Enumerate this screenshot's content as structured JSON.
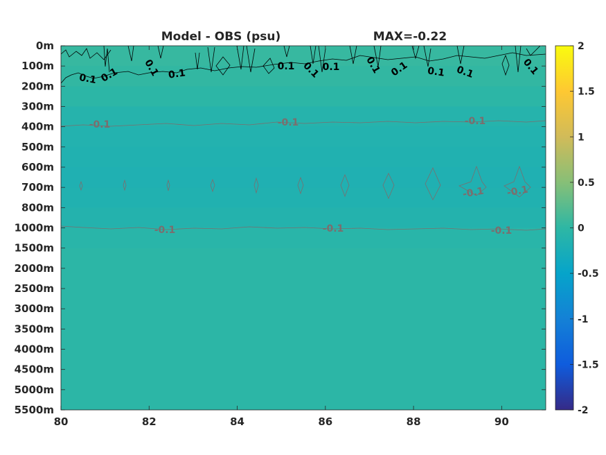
{
  "chart_data": {
    "type": "heatmap",
    "title": "Model - OBS (psu)",
    "subtitle": "MAX=-0.22",
    "x_ticks": [
      80,
      82,
      84,
      86,
      88,
      90
    ],
    "x_range": [
      80,
      91
    ],
    "y_ticks": [
      "0m",
      "100m",
      "200m",
      "300m",
      "400m",
      "500m",
      "600m",
      "700m",
      "800m",
      "1000m",
      "1500m",
      "2000m",
      "2500m",
      "3000m",
      "3500m",
      "4000m",
      "4500m",
      "5000m",
      "5500m"
    ],
    "depth_bands": [
      {
        "from": "0m",
        "to": "100m",
        "value": 0.05
      },
      {
        "from": "100m",
        "to": "200m",
        "value": 0.02
      },
      {
        "from": "200m",
        "to": "300m",
        "value": -0.03
      },
      {
        "from": "300m",
        "to": "400m",
        "value": -0.1
      },
      {
        "from": "400m",
        "to": "500m",
        "value": -0.14
      },
      {
        "from": "500m",
        "to": "600m",
        "value": -0.16
      },
      {
        "from": "600m",
        "to": "700m",
        "value": -0.18
      },
      {
        "from": "700m",
        "to": "800m",
        "value": -0.16
      },
      {
        "from": "800m",
        "to": "1000m",
        "value": -0.12
      },
      {
        "from": "1000m",
        "to": "1500m",
        "value": -0.06
      },
      {
        "from": "1500m",
        "to": "5500m",
        "value": -0.02
      }
    ],
    "contours": [
      {
        "level": 0.1,
        "color": "#000000",
        "labels": [
          "0.1",
          "0.1",
          "0.1",
          "0.1",
          "0.1",
          "0.1",
          "0.1",
          "0.1",
          "0.1",
          "0.1",
          "0.1",
          "0.1",
          "0.1"
        ]
      },
      {
        "level": -0.1,
        "color": "#7a6e6e",
        "labels": [
          "-0.1",
          "-0.1",
          "-0.1",
          "-0.1",
          "-0.1",
          "-0.1",
          "-0.1",
          "-0.1",
          "-0.1"
        ]
      }
    ],
    "colorbar": {
      "range": [
        -2,
        2
      ],
      "ticks": [
        "2",
        "1.5",
        "1",
        "0.5",
        "0",
        "-0.5",
        "-1",
        "-1.5",
        "-2"
      ],
      "colormap": "parula"
    }
  }
}
